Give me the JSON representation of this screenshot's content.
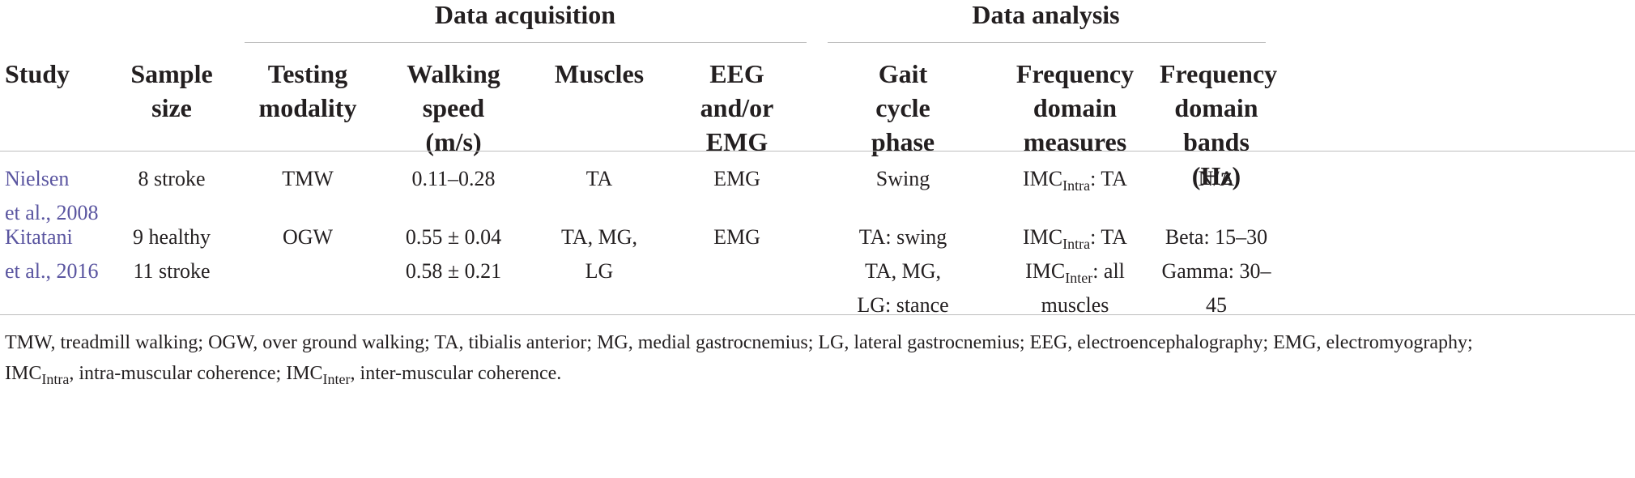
{
  "group_headers": {
    "data_acquisition": "Data acquisition",
    "data_analysis": "Data analysis"
  },
  "columns": {
    "study": "Study",
    "sample_size": [
      "Sample",
      "size"
    ],
    "testing_modality": [
      "Testing",
      "modality"
    ],
    "walking_speed": [
      "Walking",
      "speed",
      "(m/s)"
    ],
    "muscles": "Muscles",
    "eeg_emg": [
      "EEG",
      "and/or",
      "EMG"
    ],
    "gait_phase": [
      "Gait",
      "cycle",
      "phase"
    ],
    "freq_measures": [
      "Frequency",
      "domain",
      "measures"
    ],
    "freq_bands": [
      "Frequency",
      "domain",
      "bands (Hz)"
    ]
  },
  "rows": [
    {
      "study": [
        "Nielsen",
        "et al., 2008"
      ],
      "sample_size": [
        "8 stroke"
      ],
      "testing_modality": "TMW",
      "walking_speed": [
        "0.11–0.28"
      ],
      "muscles": [
        "TA"
      ],
      "eeg_emg": "EMG",
      "gait_phase": [
        "Swing"
      ],
      "freq_measures": [
        {
          "base": "IMC",
          "sub": "Intra",
          "rest": ": TA"
        }
      ],
      "freq_bands": [
        "N/A"
      ]
    },
    {
      "study": [
        "Kitatani",
        "et al., 2016"
      ],
      "sample_size": [
        "9 healthy",
        "11 stroke"
      ],
      "testing_modality": "OGW",
      "walking_speed": [
        "0.55 ± 0.04",
        "0.58 ± 0.21"
      ],
      "muscles": [
        "TA, MG,",
        "LG"
      ],
      "eeg_emg": "EMG",
      "gait_phase": [
        "TA: swing",
        "TA, MG,",
        "LG: stance"
      ],
      "freq_measures": [
        {
          "base": "IMC",
          "sub": "Intra",
          "rest": ": TA"
        },
        {
          "base": "IMC",
          "sub": "Inter",
          "rest": ": all"
        },
        {
          "base": "",
          "sub": "",
          "rest": "muscles"
        }
      ],
      "freq_bands": [
        "Beta: 15–30",
        "Gamma: 30–45"
      ]
    }
  ],
  "footnote": {
    "line1": "TMW, treadmill walking; OGW, over ground walking; TA, tibialis anterior; MG, medial gastrocnemius; LG, lateral gastrocnemius; EEG, electroencephalography; EMG, electromyography;",
    "line2_a_base": "IMC",
    "line2_a_sub": "Intra",
    "line2_a_rest": ", intra-muscular coherence; ",
    "line2_b_base": "IMC",
    "line2_b_sub": "Inter",
    "line2_b_rest": ", inter-muscular coherence."
  }
}
